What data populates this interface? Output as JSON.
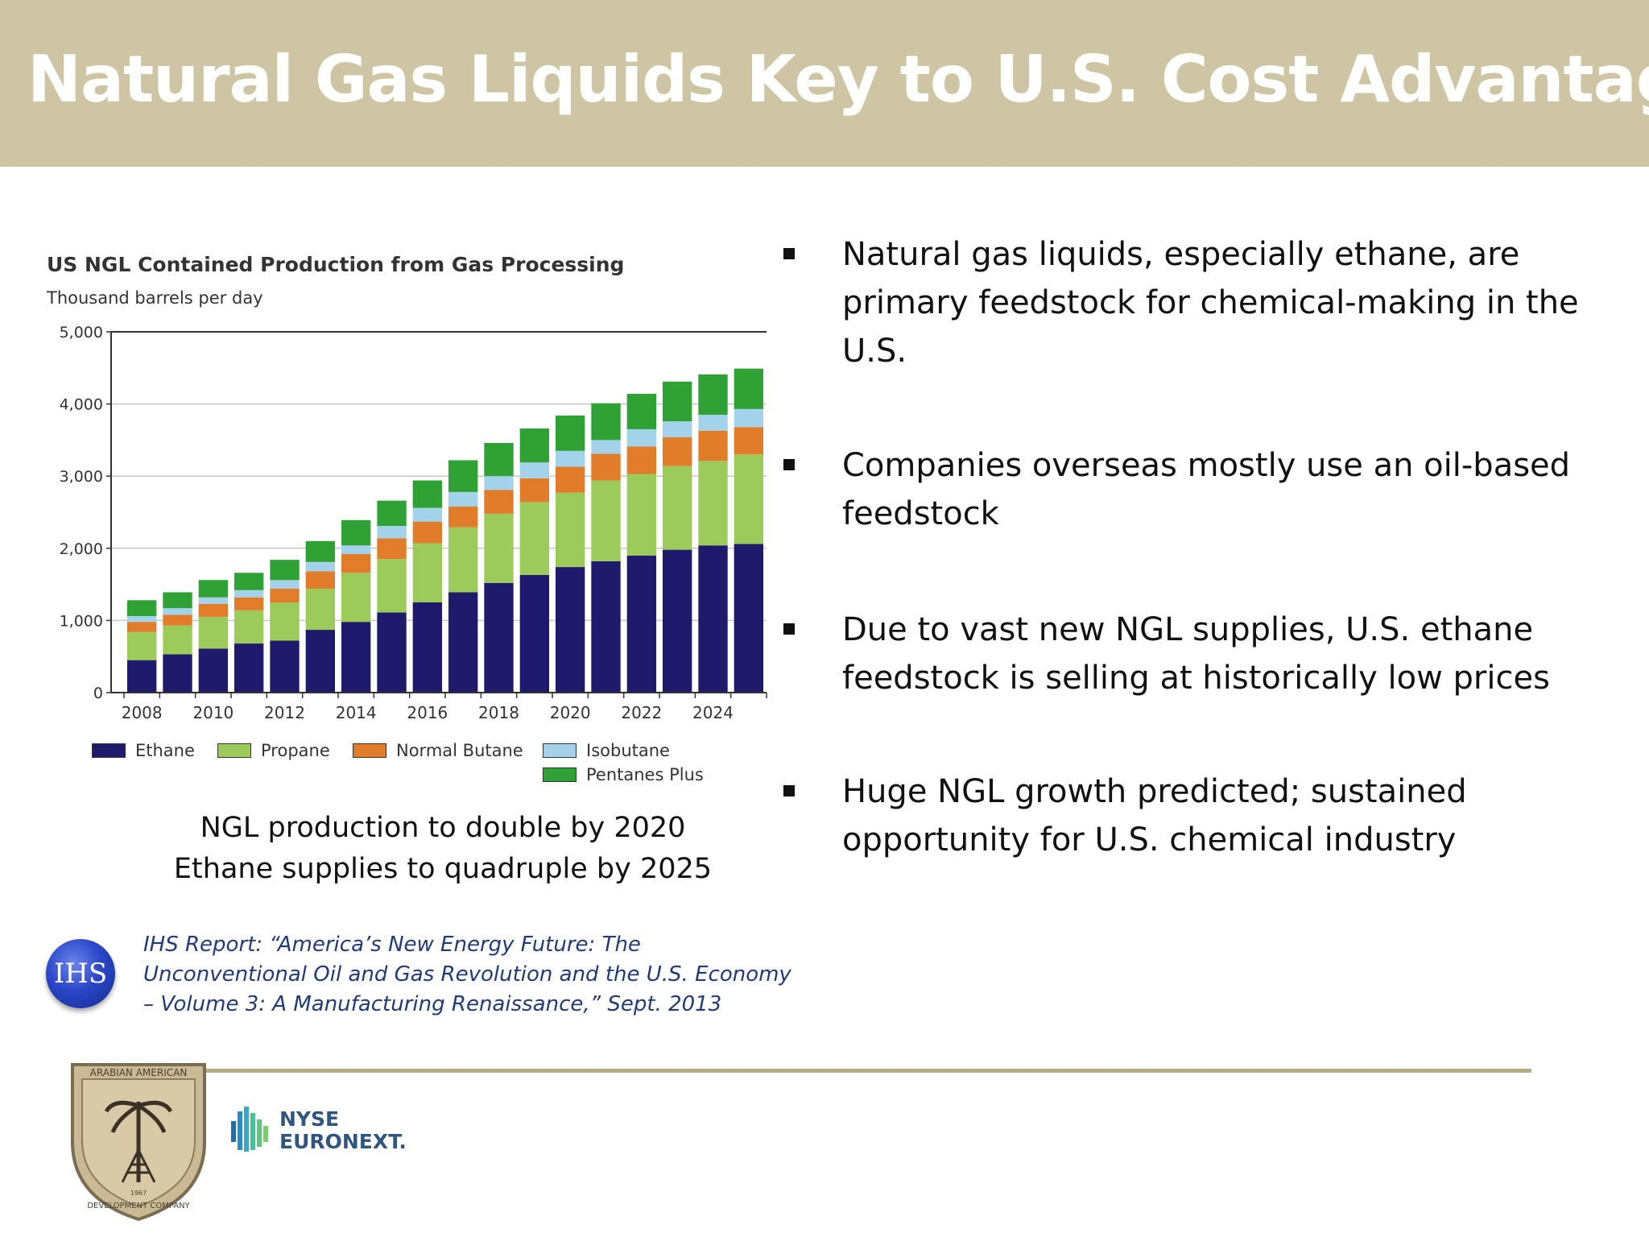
{
  "title": "Natural Gas Liquids Key to U.S. Cost Advantage",
  "chart_data": {
    "type": "bar",
    "stacked": true,
    "title": "US NGL Contained Production from Gas Processing",
    "subtitle": "Thousand barrels per day",
    "xlabel": "",
    "ylabel": "",
    "ylim": [
      0,
      5000
    ],
    "yticks": [
      "0",
      "1,000",
      "2,000",
      "3,000",
      "4,000",
      "5,000"
    ],
    "ytick_values": [
      0,
      1000,
      2000,
      3000,
      4000,
      5000
    ],
    "categories": [
      "2008",
      "2009",
      "2010",
      "2011",
      "2012",
      "2013",
      "2014",
      "2015",
      "2016",
      "2017",
      "2018",
      "2019",
      "2020",
      "2021",
      "2022",
      "2023",
      "2024",
      "2025"
    ],
    "xtick_labels": [
      "2008",
      "2010",
      "2012",
      "2014",
      "2016",
      "2018",
      "2020",
      "2022",
      "2024"
    ],
    "grid": "horizontal",
    "legend_position": "bottom",
    "series": [
      {
        "name": "Ethane",
        "color": "#1f1a6b",
        "values": [
          450,
          530,
          610,
          680,
          720,
          870,
          980,
          1110,
          1250,
          1390,
          1520,
          1630,
          1740,
          1820,
          1900,
          1980,
          2040,
          2060
        ]
      },
      {
        "name": "Propane",
        "color": "#9ccb5c",
        "values": [
          390,
          400,
          440,
          460,
          530,
          570,
          680,
          740,
          820,
          900,
          960,
          1010,
          1030,
          1120,
          1130,
          1160,
          1170,
          1240
        ]
      },
      {
        "name": "Normal Butane",
        "color": "#e07c2a",
        "values": [
          140,
          150,
          180,
          180,
          190,
          240,
          260,
          290,
          300,
          290,
          330,
          330,
          360,
          370,
          380,
          400,
          420,
          380
        ]
      },
      {
        "name": "Isobutane",
        "color": "#a4d2ea",
        "values": [
          80,
          90,
          90,
          100,
          120,
          130,
          120,
          170,
          190,
          200,
          190,
          220,
          220,
          190,
          240,
          220,
          220,
          250
        ]
      },
      {
        "name": "Pentanes Plus",
        "color": "#2fa135",
        "values": [
          220,
          220,
          240,
          240,
          280,
          290,
          350,
          350,
          380,
          440,
          460,
          470,
          490,
          510,
          490,
          550,
          560,
          560
        ]
      }
    ]
  },
  "caption": [
    "NGL production to double by 2020",
    "Ethane supplies to quadruple by 2025"
  ],
  "source": {
    "logo_text": "IHS",
    "lines": [
      "IHS Report: “America’s New Energy Future: The",
      "Unconventional Oil and Gas Revolution and the U.S. Economy",
      "– Volume 3: A Manufacturing Renaissance,” Sept. 2013"
    ]
  },
  "bullets": [
    {
      "lines": [
        "Natural gas liquids, especially ethane, are",
        "primary feedstock for chemical-making in the",
        "U.S."
      ]
    },
    {
      "lines": [
        "Companies overseas mostly use an oil-based",
        "feedstock"
      ]
    },
    {
      "lines": [
        "Due to vast new NGL supplies, U.S. ethane",
        "feedstock is selling at historically low prices"
      ]
    },
    {
      "lines": [
        "Huge NGL growth predicted; sustained",
        "opportunity for U.S. chemical industry"
      ]
    }
  ],
  "footer": {
    "seal_top_text": "ARABIAN AMERICAN",
    "seal_bottom_text": "DEVELOPMENT COMPANY",
    "seal_year": "1967",
    "nyse_line1": "NYSE",
    "nyse_line2": "EURONEXT."
  },
  "colors": {
    "header_bg": "#cdc5a4",
    "accent_line": "#b6ad86",
    "source_text": "#1f3b78"
  }
}
